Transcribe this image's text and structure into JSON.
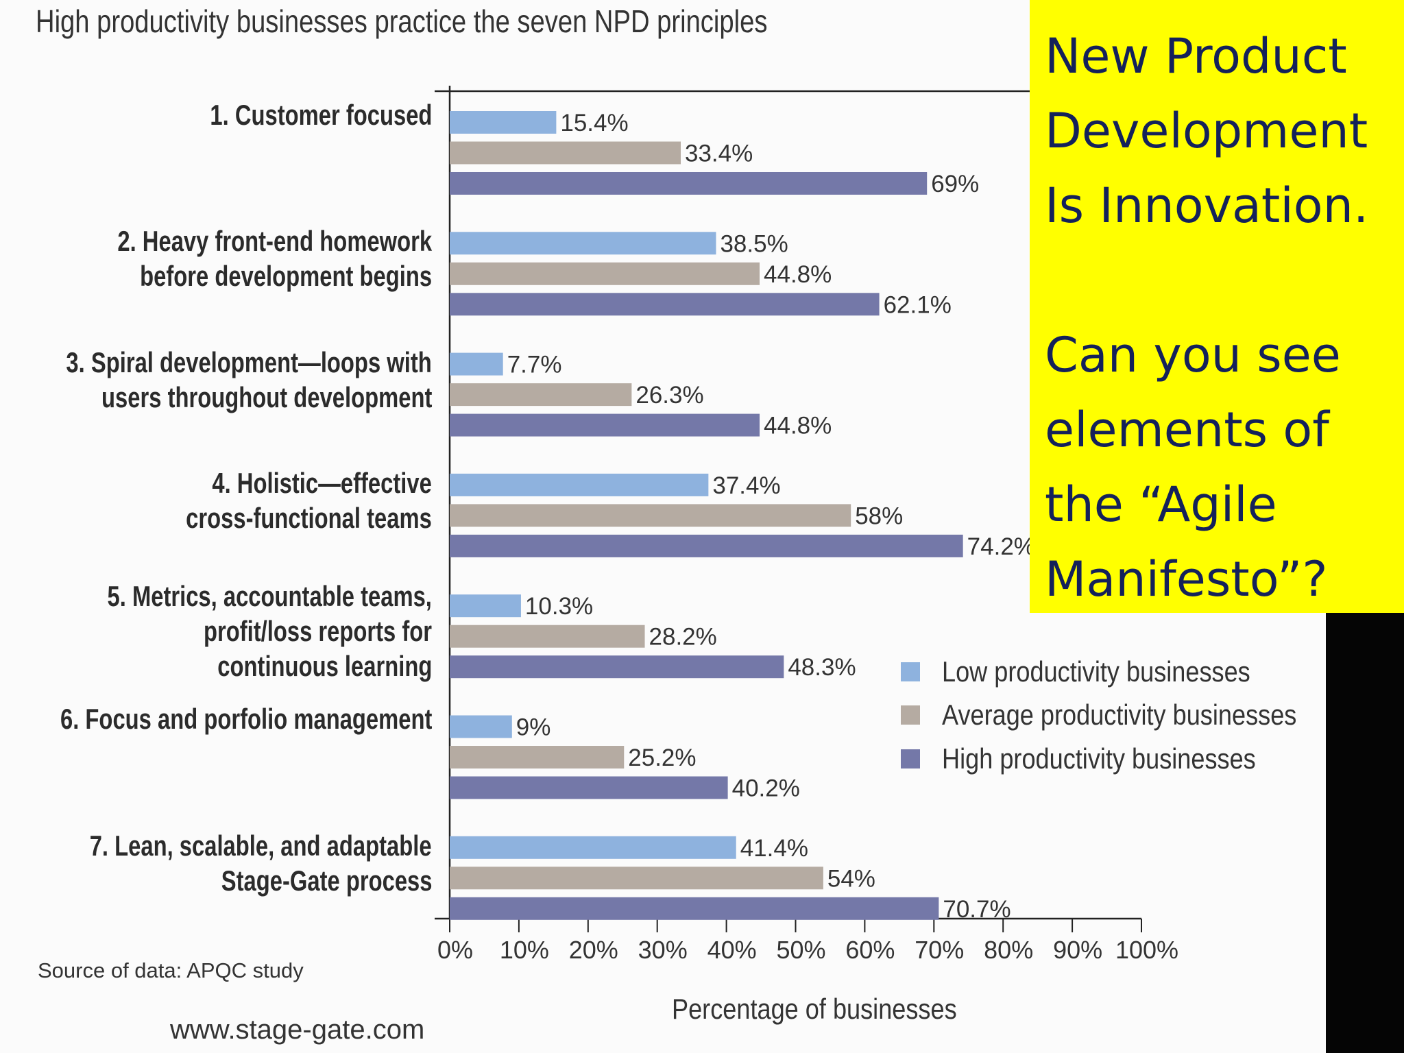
{
  "chart_data": {
    "type": "bar",
    "orientation": "horizontal",
    "title": "High productivity businesses practice the seven NPD principles",
    "xlabel": "Percentage of businesses",
    "xlim": [
      0,
      100
    ],
    "x_ticks": [
      "0%",
      "10%",
      "20%",
      "30%",
      "40%",
      "50%",
      "60%",
      "70%",
      "80%",
      "90%",
      "100%"
    ],
    "categories": [
      [
        "1. Customer focused"
      ],
      [
        "2. Heavy front-end homework",
        "before development begins"
      ],
      [
        "3. Spiral development—loops with",
        "users throughout development"
      ],
      [
        "4. Holistic—effective",
        "cross-functional teams"
      ],
      [
        "5. Metrics, accountable teams,",
        "profit/loss reports for",
        "continuous learning"
      ],
      [
        "6. Focus and porfolio management"
      ],
      [
        "7. Lean, scalable, and adaptable",
        "Stage-Gate process"
      ]
    ],
    "series": [
      {
        "name": "Low productivity businesses",
        "color": "#8eb2de",
        "values": [
          15.4,
          38.5,
          7.7,
          37.4,
          10.3,
          9,
          41.4
        ],
        "labels": [
          "15.4%",
          "38.5%",
          "7.7%",
          "37.4%",
          "10.3%",
          "9%",
          "41.4%"
        ]
      },
      {
        "name": "Average productivity businesses",
        "color": "#b5aba2",
        "values": [
          33.4,
          44.8,
          26.3,
          58,
          28.2,
          25.2,
          54
        ],
        "labels": [
          "33.4%",
          "44.8%",
          "26.3%",
          "58%",
          "28.2%",
          "25.2%",
          "54%"
        ]
      },
      {
        "name": "High productivity businesses",
        "color": "#7478a8",
        "values": [
          69,
          62.1,
          44.8,
          74.2,
          48.3,
          40.2,
          70.7
        ],
        "labels": [
          "69%",
          "62.1%",
          "44.8%",
          "74.2%",
          "48.3%",
          "40.2%",
          "70.7%"
        ]
      }
    ],
    "legend_position": "right"
  },
  "source": "Source of data: APQC study",
  "website": "www.stage-gate.com",
  "callout": {
    "lines": [
      "New Product",
      "Development",
      "Is Innovation.",
      "",
      "Can you see",
      "elements of",
      "the “Agile",
      "Manifesto”?"
    ]
  }
}
